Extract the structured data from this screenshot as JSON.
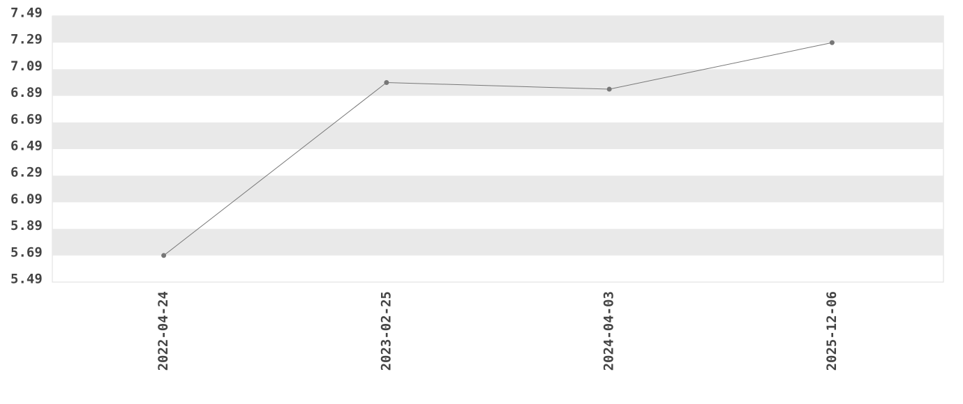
{
  "chart_data": {
    "type": "line",
    "categories": [
      "2022-04-24",
      "2023-02-25",
      "2024-04-03",
      "2025-12-06"
    ],
    "values": [
      5.69,
      6.99,
      6.94,
      7.29
    ],
    "color": "#777777",
    "ylim": [
      5.49,
      7.49
    ],
    "yticks": [
      5.49,
      5.69,
      5.89,
      6.09,
      6.29,
      6.49,
      6.69,
      6.89,
      7.09,
      7.29,
      7.49
    ],
    "grid": true
  }
}
